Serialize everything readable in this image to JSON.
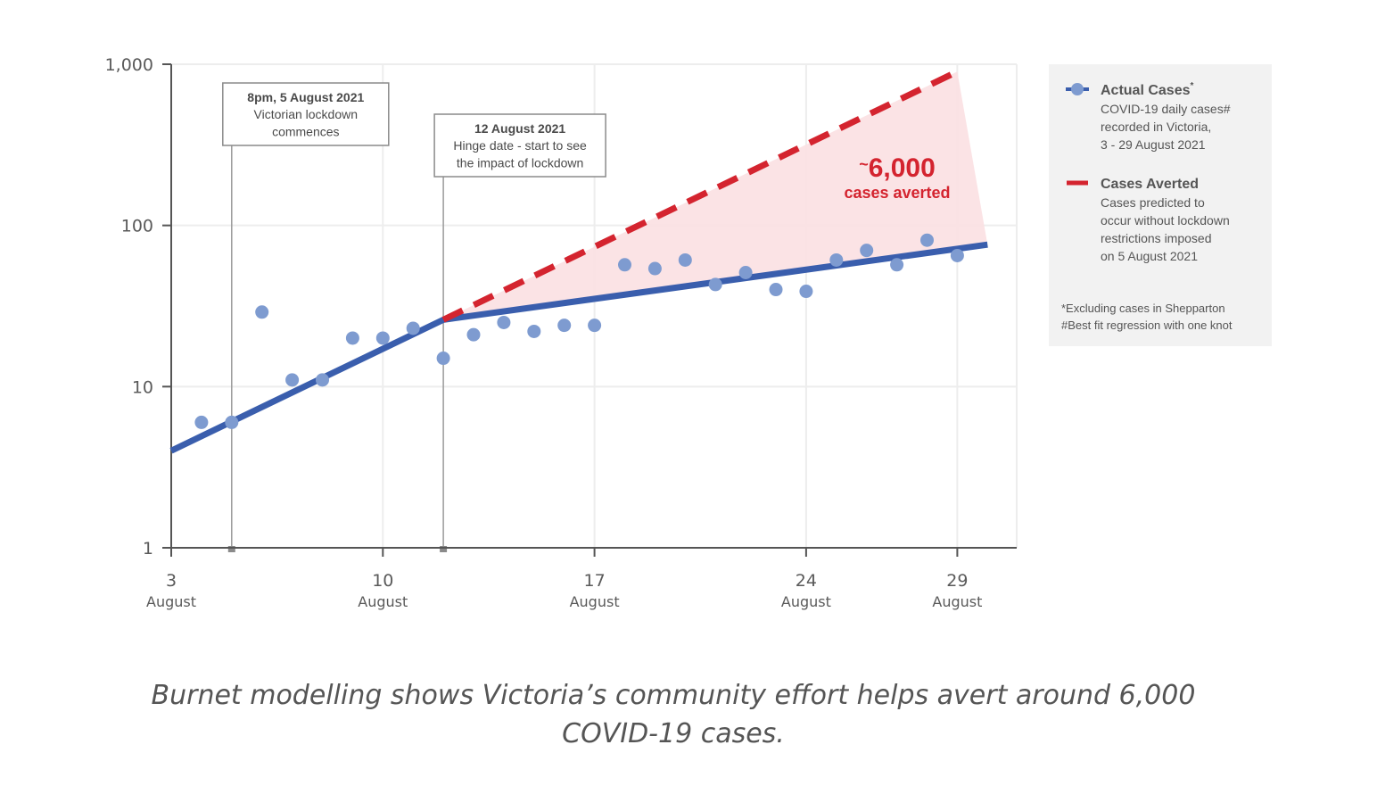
{
  "chart_data": {
    "type": "scatter",
    "y_scale": "log",
    "ylim": [
      1,
      1000
    ],
    "y_ticks": [
      1,
      10,
      100,
      1000
    ],
    "y_tick_labels": [
      "1",
      "10",
      "100",
      "1,000"
    ],
    "xlim": [
      "2021-08-03",
      "2021-08-30"
    ],
    "x_ticks": [
      {
        "date": "2021-08-03",
        "day": "3",
        "month": "August"
      },
      {
        "date": "2021-08-10",
        "day": "10",
        "month": "August"
      },
      {
        "date": "2021-08-17",
        "day": "17",
        "month": "August"
      },
      {
        "date": "2021-08-24",
        "day": "24",
        "month": "August"
      },
      {
        "date": "2021-08-29",
        "day": "29",
        "month": "August"
      }
    ],
    "grid": true,
    "legend_position": "right",
    "series": [
      {
        "name": "Actual Cases",
        "type": "scatter",
        "color": "#7e9bd0",
        "points": [
          {
            "x": "2021-08-04",
            "y": 6
          },
          {
            "x": "2021-08-05",
            "y": 6
          },
          {
            "x": "2021-08-06",
            "y": 29
          },
          {
            "x": "2021-08-07",
            "y": 11
          },
          {
            "x": "2021-08-08",
            "y": 11
          },
          {
            "x": "2021-08-09",
            "y": 20
          },
          {
            "x": "2021-08-10",
            "y": 20
          },
          {
            "x": "2021-08-11",
            "y": 23
          },
          {
            "x": "2021-08-12",
            "y": 15
          },
          {
            "x": "2021-08-13",
            "y": 21
          },
          {
            "x": "2021-08-14",
            "y": 25
          },
          {
            "x": "2021-08-15",
            "y": 22
          },
          {
            "x": "2021-08-16",
            "y": 24
          },
          {
            "x": "2021-08-17",
            "y": 24
          },
          {
            "x": "2021-08-18",
            "y": 57
          },
          {
            "x": "2021-08-19",
            "y": 54
          },
          {
            "x": "2021-08-20",
            "y": 61
          },
          {
            "x": "2021-08-21",
            "y": 43
          },
          {
            "x": "2021-08-22",
            "y": 51
          },
          {
            "x": "2021-08-23",
            "y": 40
          },
          {
            "x": "2021-08-24",
            "y": 39
          },
          {
            "x": "2021-08-25",
            "y": 61
          },
          {
            "x": "2021-08-26",
            "y": 70
          },
          {
            "x": "2021-08-27",
            "y": 57
          },
          {
            "x": "2021-08-28",
            "y": 81
          },
          {
            "x": "2021-08-29",
            "y": 65
          }
        ]
      },
      {
        "name": "Best fit regression",
        "type": "line",
        "color": "#3a5ead",
        "points": [
          {
            "x": "2021-08-03",
            "y": 4
          },
          {
            "x": "2021-08-12",
            "y": 26
          },
          {
            "x": "2021-08-30",
            "y": 76
          }
        ]
      },
      {
        "name": "Cases Averted",
        "type": "dashed-line",
        "color": "#d4242f",
        "points": [
          {
            "x": "2021-08-12",
            "y": 26
          },
          {
            "x": "2021-08-29",
            "y": 900
          }
        ]
      }
    ],
    "shaded_region": {
      "color": "#fbe0e2",
      "points": [
        {
          "x": "2021-08-12",
          "y": 26
        },
        {
          "x": "2021-08-29",
          "y": 900
        },
        {
          "x": "2021-08-30",
          "y": 76
        }
      ]
    },
    "annotations": [
      {
        "date": "2021-08-05",
        "title": "8pm, 5 August 2021",
        "lines": [
          "Victorian lockdown",
          "commences"
        ]
      },
      {
        "date": "2021-08-12",
        "title": "12 August 2021",
        "lines": [
          "Hinge date - start to see",
          "the impact of lockdown"
        ]
      }
    ],
    "averted_label": {
      "prefix": "~",
      "value": "6,000",
      "text": "cases averted"
    },
    "legend": {
      "items": [
        {
          "name": "Actual Cases",
          "sup": "*",
          "lines": [
            "COVID-19 daily cases#",
            "recorded in Victoria,",
            "3 - 29 August 2021"
          ],
          "color": "#7e9bd0",
          "line_color": "#3a5ead"
        },
        {
          "name": "Cases Averted",
          "lines": [
            "Cases predicted to",
            "occur without lockdown",
            "restrictions imposed",
            "on 5 August 2021"
          ],
          "color": "#d4242f"
        }
      ],
      "notes": [
        "*Excluding cases in Shepparton",
        "#Best fit regression with one knot"
      ]
    }
  },
  "caption": {
    "line1": "Burnet modelling shows Victoria’s community effort helps avert around 6,000",
    "line2": "COVID-19 cases."
  }
}
